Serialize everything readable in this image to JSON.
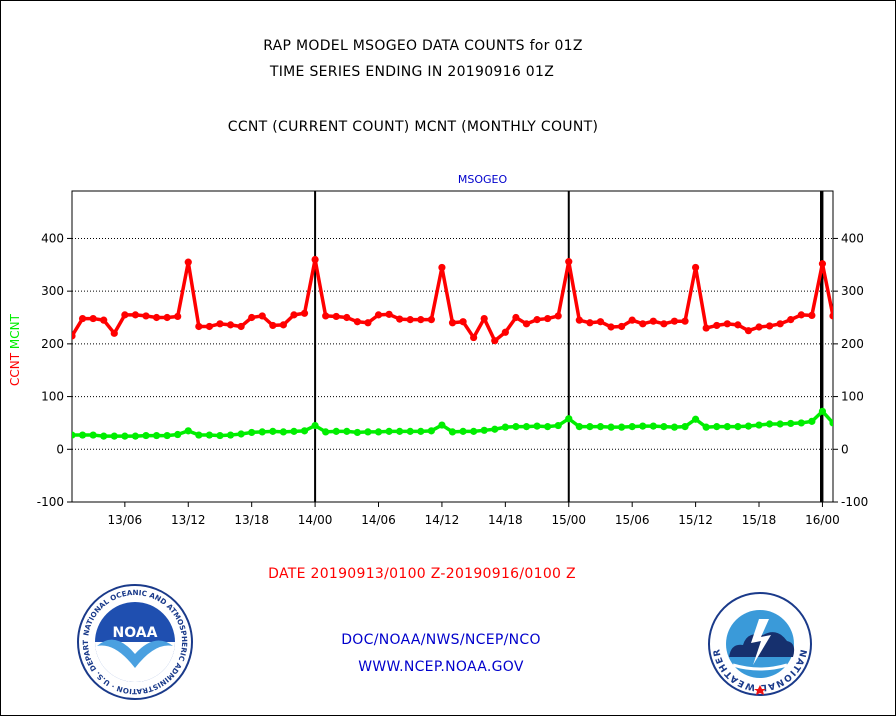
{
  "header": {
    "title_line1": "RAP MODEL MSOGEO DATA COUNTS for 01Z",
    "title_line2": "TIME SERIES ENDING IN 20190916 01Z",
    "subtitle": "CCNT (CURRENT COUNT) MCNT (MONTHLY COUNT)"
  },
  "footer": {
    "date_range": "DATE 20190913/0100 Z-20190916/0100 Z",
    "org_line": "DOC/NOAA/NWS/NCEP/NCO",
    "url_line": "WWW.NCEP.NOAA.GOV"
  },
  "logos": {
    "noaa": {
      "center_text": "NOAA",
      "ring_text": "NATIONAL OCEANIC AND ATMOSPHERIC ADMINISTRATION · U.S. DEPARTMENT OF COMMERCE"
    },
    "nws": {
      "ring_text": "NATIONAL WEATHER SERVICE"
    }
  },
  "colors": {
    "ccnt": "#ff0000",
    "mcnt": "#00ee00",
    "label_blue": "#0000cc"
  },
  "chart_data": {
    "type": "line",
    "title": "MSOGEO",
    "ylabel_parts": [
      {
        "text": "CCNT",
        "color": "#ff0000"
      },
      {
        "text": "MCNT",
        "color": "#00ee00"
      }
    ],
    "ylim": [
      -100,
      490
    ],
    "yticks": [
      -100,
      0,
      100,
      200,
      300,
      400
    ],
    "xlim": [
      0,
      72
    ],
    "xticks": [
      {
        "x": 5,
        "label": "13/06"
      },
      {
        "x": 11,
        "label": "13/12"
      },
      {
        "x": 17,
        "label": "13/18"
      },
      {
        "x": 23,
        "label": "14/00"
      },
      {
        "x": 29,
        "label": "14/06"
      },
      {
        "x": 35,
        "label": "14/12"
      },
      {
        "x": 41,
        "label": "14/18"
      },
      {
        "x": 47,
        "label": "15/00"
      },
      {
        "x": 53,
        "label": "15/06"
      },
      {
        "x": 59,
        "label": "15/12"
      },
      {
        "x": 65,
        "label": "15/18"
      },
      {
        "x": 71,
        "label": "16/00"
      }
    ],
    "day_lines_x": [
      23,
      47,
      71
    ],
    "grid_y": [
      0,
      100,
      200,
      300,
      400
    ],
    "series": [
      {
        "name": "CCNT",
        "color": "#ff0000",
        "values": [
          215,
          248,
          248,
          245,
          220,
          255,
          255,
          253,
          250,
          250,
          252,
          355,
          233,
          233,
          238,
          236,
          233,
          250,
          253,
          235,
          236,
          255,
          258,
          360,
          253,
          252,
          250,
          242,
          240,
          255,
          256,
          247,
          246,
          246,
          246,
          345,
          240,
          242,
          212,
          248,
          206,
          222,
          250,
          238,
          246,
          248,
          253,
          356,
          245,
          240,
          242,
          232,
          233,
          245,
          238,
          243,
          238,
          243,
          243,
          345,
          230,
          235,
          238,
          236,
          225,
          232,
          234,
          238,
          246,
          255,
          254,
          352,
          253
        ]
      },
      {
        "name": "MCNT",
        "color": "#00ee00",
        "values": [
          27,
          27,
          27,
          25,
          25,
          25,
          25,
          26,
          26,
          26,
          28,
          35,
          27,
          27,
          26,
          27,
          29,
          32,
          33,
          34,
          33,
          34,
          35,
          45,
          33,
          34,
          34,
          32,
          33,
          33,
          34,
          34,
          34,
          34,
          35,
          46,
          33,
          34,
          34,
          36,
          38,
          42,
          43,
          43,
          44,
          43,
          45,
          58,
          43,
          43,
          43,
          42,
          42,
          43,
          44,
          44,
          43,
          42,
          43,
          57,
          42,
          43,
          43,
          43,
          44,
          46,
          48,
          48,
          49,
          50,
          53,
          72,
          50
        ]
      }
    ]
  }
}
